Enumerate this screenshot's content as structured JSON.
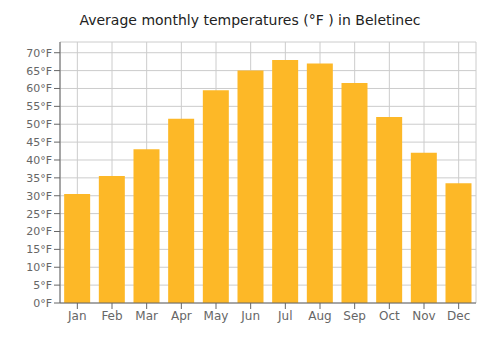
{
  "chart_data": {
    "type": "bar",
    "title": "Average monthly temperatures (°F ) in Beletinec",
    "categories": [
      "Jan",
      "Feb",
      "Mar",
      "Apr",
      "May",
      "Jun",
      "Jul",
      "Aug",
      "Sep",
      "Oct",
      "Nov",
      "Dec"
    ],
    "values": [
      30.5,
      35.5,
      43.0,
      51.5,
      59.5,
      65.0,
      68.0,
      67.0,
      61.5,
      52.0,
      42.0,
      33.5
    ],
    "color": "#FDB827",
    "ylim": [
      0,
      73
    ],
    "yticks": [
      {
        "value": 0,
        "label": "0°F"
      },
      {
        "value": 5,
        "label": "5°F"
      },
      {
        "value": 10,
        "label": "10°F"
      },
      {
        "value": 15,
        "label": "15°F"
      },
      {
        "value": 20,
        "label": "20°F"
      },
      {
        "value": 25,
        "label": "25°F"
      },
      {
        "value": 30,
        "label": "30°F"
      },
      {
        "value": 35,
        "label": "35°F"
      },
      {
        "value": 40,
        "label": "40°F"
      },
      {
        "value": 45,
        "label": "45°F"
      },
      {
        "value": 50,
        "label": "50°F"
      },
      {
        "value": 55,
        "label": "55°F"
      },
      {
        "value": 60,
        "label": "60°F"
      },
      {
        "value": 65,
        "label": "65°F"
      },
      {
        "value": 70,
        "label": "70°F"
      }
    ],
    "grid": true
  }
}
